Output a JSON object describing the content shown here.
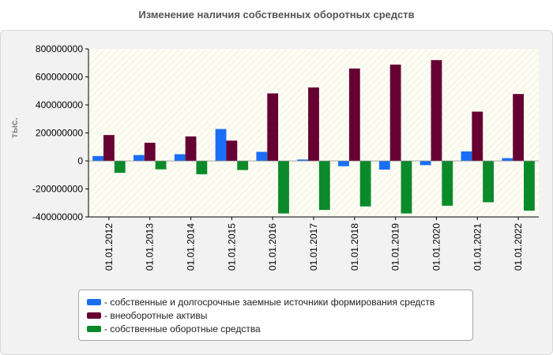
{
  "chart_data": {
    "type": "bar",
    "title": "Изменение наличия собственных оборотных средств",
    "ylabel": "тыс.",
    "xlabel": "",
    "ylim": [
      -400000000,
      800000000
    ],
    "yticks": [
      800000000,
      600000000,
      400000000,
      200000000,
      0,
      -200000000,
      -400000000
    ],
    "ytick_labels": [
      "800000000",
      "600000000",
      "400000000",
      "200000000",
      "0",
      "-200000000",
      "-400000000"
    ],
    "categories": [
      "01.01.2012",
      "01.01.2013",
      "01.01.2014",
      "01.01.2015",
      "01.01.2016",
      "01.01.2017",
      "01.01.2018",
      "01.01.2019",
      "01.01.2020",
      "01.01.2021",
      "01.01.2022"
    ],
    "series": [
      {
        "name": "- собственные и долгосрочные заемные источники формирования средств",
        "color": "#1a6ef5",
        "values": [
          35000000,
          42000000,
          48000000,
          228000000,
          65000000,
          10000000,
          -38000000,
          -62000000,
          -30000000,
          68000000,
          20000000
        ]
      },
      {
        "name": "- внеоборотные активы",
        "color": "#660033",
        "values": [
          185000000,
          130000000,
          175000000,
          145000000,
          482000000,
          525000000,
          660000000,
          688000000,
          720000000,
          352000000,
          478000000
        ]
      },
      {
        "name": "- собственные оборотные средства",
        "color": "#0a8a2a",
        "values": [
          -85000000,
          -60000000,
          -95000000,
          -65000000,
          -375000000,
          -350000000,
          -325000000,
          -375000000,
          -320000000,
          -295000000,
          -355000000
        ]
      }
    ],
    "legend_position": "bottom",
    "grid": false
  }
}
